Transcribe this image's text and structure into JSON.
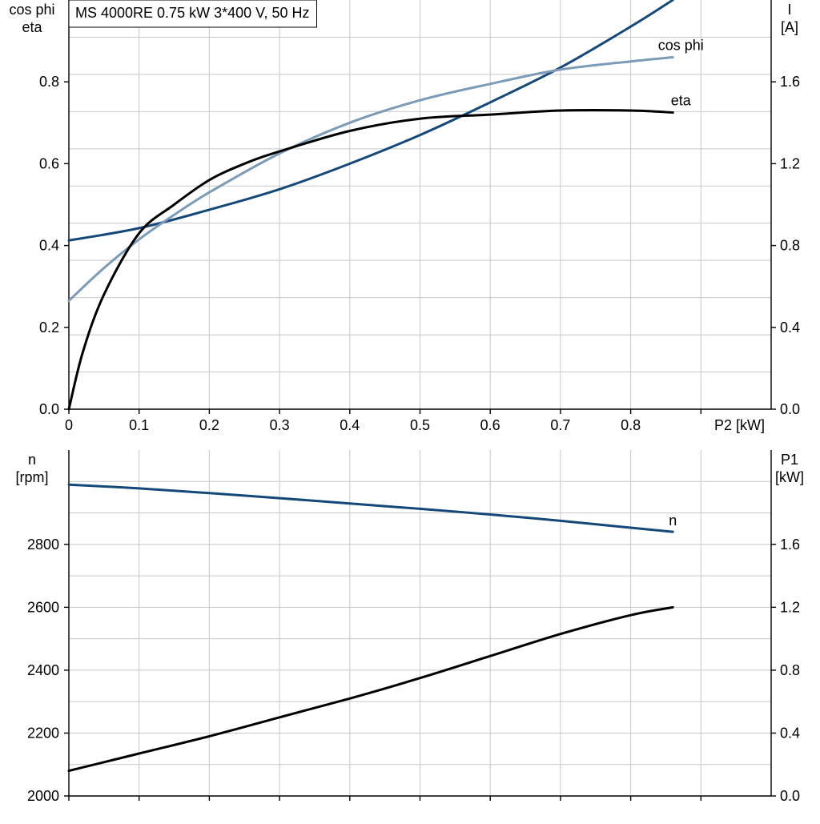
{
  "chart_data": [
    {
      "type": "line",
      "title": "MS 4000RE   0.75 kW   3*400 V, 50 Hz",
      "xlabel": "P2 [kW]",
      "xlim": [
        0,
        1.0
      ],
      "xticks": [
        0,
        0.1,
        0.2,
        0.3,
        0.4,
        0.5,
        0.6,
        0.7,
        0.8
      ],
      "xtick_labels": [
        "0",
        "0.1",
        "0.2",
        "0.3",
        "0.4",
        "0.5",
        "0.6",
        "0.7",
        "0.8"
      ],
      "ylabel_left": [
        "cos phi",
        "eta"
      ],
      "ylim_left": [
        0,
        1.0
      ],
      "yticks_left": [
        0.0,
        0.2,
        0.4,
        0.6,
        0.8
      ],
      "ytick_labels_left": [
        "0.0",
        "0.2",
        "0.4",
        "0.6",
        "0.8"
      ],
      "ylabel_right": [
        "I",
        "[A]"
      ],
      "ylim_right": [
        0,
        2.0
      ],
      "yticks_right": [
        0.0,
        0.4,
        0.8,
        1.2,
        1.6
      ],
      "ytick_labels_right": [
        "0.0",
        "0.4",
        "0.8",
        "1.2",
        "1.6"
      ],
      "grid": true,
      "series": [
        {
          "name": "I",
          "axis": "right",
          "color": "#15487a",
          "x": [
            0,
            0.1,
            0.2,
            0.3,
            0.4,
            0.5,
            0.6,
            0.7,
            0.8,
            0.86
          ],
          "y": [
            0.825,
            0.885,
            0.975,
            1.075,
            1.2,
            1.34,
            1.5,
            1.67,
            1.87,
            2.0
          ]
        },
        {
          "name": "cos phi",
          "axis": "left",
          "color": "#7b9bb9",
          "x": [
            0,
            0.05,
            0.1,
            0.15,
            0.2,
            0.3,
            0.4,
            0.5,
            0.6,
            0.7,
            0.8,
            0.86
          ],
          "y": [
            0.265,
            0.345,
            0.415,
            0.475,
            0.53,
            0.625,
            0.7,
            0.755,
            0.795,
            0.83,
            0.85,
            0.86
          ]
        },
        {
          "name": "eta",
          "axis": "left",
          "color": "#000000",
          "x": [
            0,
            0.02,
            0.05,
            0.1,
            0.15,
            0.2,
            0.25,
            0.3,
            0.4,
            0.5,
            0.6,
            0.7,
            0.8,
            0.86
          ],
          "y": [
            0.0,
            0.14,
            0.28,
            0.43,
            0.5,
            0.56,
            0.6,
            0.63,
            0.68,
            0.71,
            0.72,
            0.73,
            0.73,
            0.725
          ]
        }
      ]
    },
    {
      "type": "line",
      "xlim": [
        0,
        1.0
      ],
      "ylabel_left": [
        "n",
        "[rpm]"
      ],
      "ylim_left": [
        2000,
        3100
      ],
      "yticks_left": [
        2000,
        2200,
        2400,
        2600,
        2800
      ],
      "ytick_labels_left": [
        "2000",
        "2200",
        "2400",
        "2600",
        "2800"
      ],
      "ylabel_right": [
        "P1",
        "[kW]"
      ],
      "ylim_right": [
        0,
        2.2
      ],
      "yticks_right": [
        0.0,
        0.4,
        0.8,
        1.2,
        1.6
      ],
      "ytick_labels_right": [
        "0.0",
        "0.4",
        "0.8",
        "1.2",
        "1.6"
      ],
      "grid": true,
      "series": [
        {
          "name": "n",
          "axis": "left",
          "color": "#15487a",
          "x": [
            0,
            0.1,
            0.2,
            0.3,
            0.4,
            0.5,
            0.6,
            0.7,
            0.8,
            0.86
          ],
          "y": [
            2990,
            2978,
            2963,
            2947,
            2930,
            2913,
            2895,
            2875,
            2853,
            2840
          ]
        },
        {
          "axis": "right",
          "color": "#000000",
          "x": [
            0,
            0.1,
            0.2,
            0.3,
            0.4,
            0.5,
            0.6,
            0.7,
            0.8,
            0.86
          ],
          "y": [
            0.16,
            0.27,
            0.38,
            0.5,
            0.62,
            0.75,
            0.89,
            1.03,
            1.15,
            1.2
          ]
        }
      ]
    }
  ]
}
